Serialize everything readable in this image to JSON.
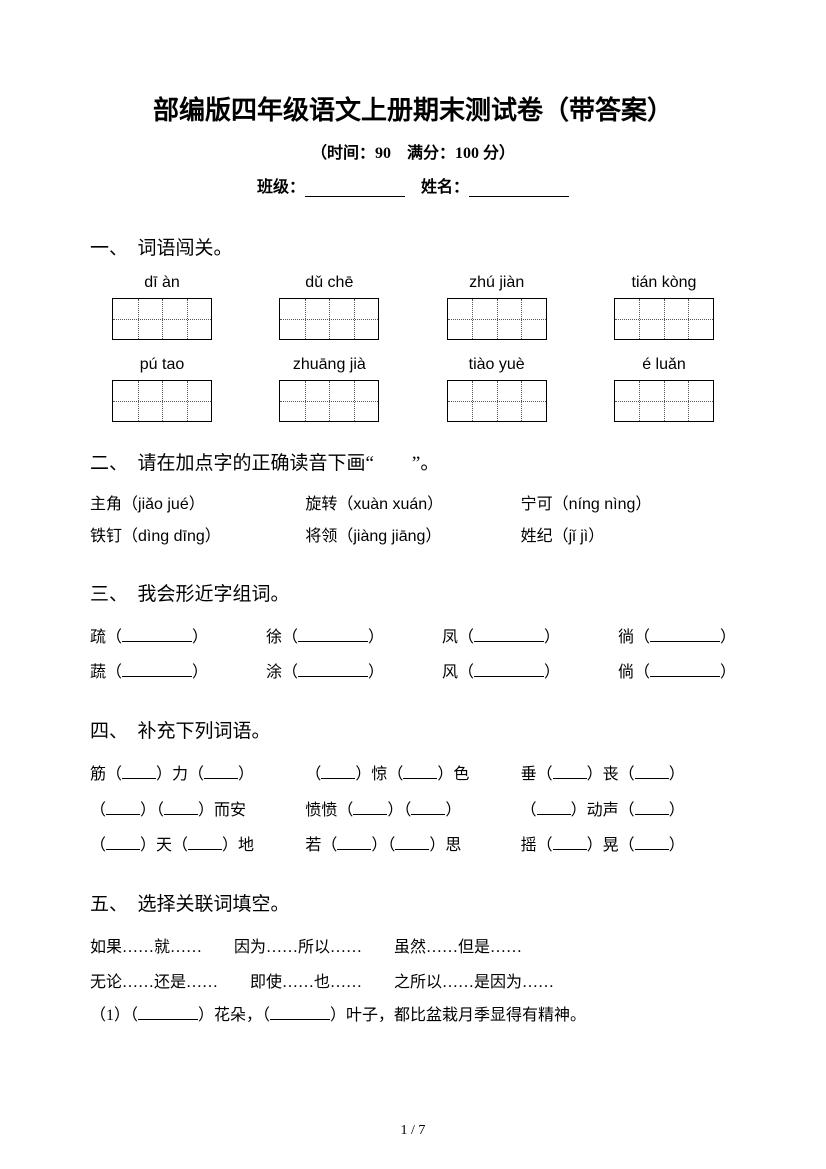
{
  "title": "部编版四年级语文上册期末测试卷（带答案）",
  "subtitle": "（时间：90　满分：100 分）",
  "info": {
    "class_label": "班级：",
    "name_label": "姓名："
  },
  "sections": {
    "s1": {
      "heading": "一、　词语闯关。",
      "pinyin1": [
        "dī àn",
        "dǔ chē",
        "zhú jiàn",
        "tián kòng"
      ],
      "pinyin2": [
        "pú tao",
        "zhuāng jià",
        "tiào yuè",
        "é luǎn"
      ]
    },
    "s2": {
      "heading": "二、　请在加点字的正确读音下画“　　”。",
      "row1": [
        {
          "han": "主角",
          "py": "（jiǎo jué）"
        },
        {
          "han": "旋转",
          "py": "（xuàn xuán）"
        },
        {
          "han": "宁可",
          "py": "（níng nìng）"
        }
      ],
      "row2": [
        {
          "han": "铁钉",
          "py": "（dìng dīng）"
        },
        {
          "han": "将领",
          "py": "（jiàng jiāng）"
        },
        {
          "han": "姓纪",
          "py": "（jǐ jì）"
        }
      ]
    },
    "s3": {
      "heading": "三、　我会形近字组词。",
      "row1": [
        "疏",
        "徐",
        "凤",
        "徜"
      ],
      "row2": [
        "蔬",
        "涂",
        "风",
        "倘"
      ]
    },
    "s4": {
      "heading": "四、　补充下列词语。",
      "items": [
        [
          "筋（",
          "）力（",
          "）"
        ],
        [
          "（",
          "）惊（",
          "）色"
        ],
        [
          "垂（",
          "）丧（",
          "）"
        ],
        [
          "（",
          "）（",
          "）而安"
        ],
        [
          "愤愤（",
          "）（",
          "）"
        ],
        [
          "（",
          "）动声（",
          "）"
        ],
        [
          "（",
          "）天（",
          "）地"
        ],
        [
          "若（",
          "）（",
          "）思"
        ],
        [
          "摇（",
          "）晃（",
          "）"
        ]
      ]
    },
    "s5": {
      "heading": "五、　选择关联词填空。",
      "conj1": [
        "如果……就……",
        "因为……所以……",
        "虽然……但是……"
      ],
      "conj2": [
        "无论……还是……",
        "即使……也……",
        "之所以……是因为……"
      ],
      "q1": {
        "pre": "（1）（",
        "mid": "）花朵，（",
        "suf": "）叶子，都比盆栽月季显得有精神。"
      }
    }
  },
  "page_num": "1 / 7"
}
